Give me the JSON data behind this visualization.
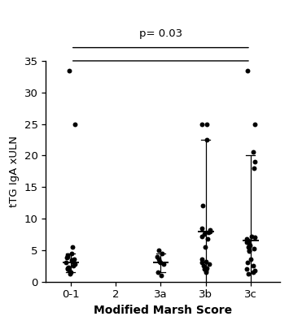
{
  "categories": [
    "0-1",
    "2",
    "3a",
    "3b",
    "3c"
  ],
  "cat_positions": [
    1,
    2,
    3,
    4,
    5
  ],
  "scatter_data": {
    "0-1": [
      33.5,
      25,
      5.5,
      4.5,
      4.2,
      4.0,
      3.8,
      3.5,
      3.4,
      3.2,
      3.0,
      2.8,
      2.5,
      2.3,
      2.2,
      2.0,
      1.8,
      1.5,
      1.2
    ],
    "2": [],
    "3a": [
      5.0,
      4.5,
      4.0,
      3.5,
      3.2,
      3.0,
      2.8,
      1.5,
      1.0
    ],
    "3b": [
      25,
      25,
      22.5,
      12,
      8.5,
      8.2,
      8.0,
      7.8,
      7.5,
      7.2,
      6.8,
      5.5,
      3.5,
      3.2,
      3.0,
      2.8,
      2.5,
      2.2,
      2.0,
      1.8,
      1.5
    ],
    "3c": [
      33.5,
      25,
      20.5,
      19,
      18,
      7.2,
      7.0,
      6.8,
      6.5,
      6.3,
      6.0,
      5.8,
      5.5,
      5.2,
      5.0,
      4.8,
      3.5,
      3.0,
      2.5,
      2.0,
      1.8,
      1.5,
      1.2
    ]
  },
  "mean_values": {
    "0-1": 3.0,
    "3a": 3.0,
    "3b": 8.0,
    "3c": 6.5
  },
  "sd_values": {
    "0-1": 1.5,
    "3a": 1.5,
    "3b": 14.5,
    "3c": 13.5
  },
  "ylabel": "tTG IgA xULN",
  "xlabel": "Modified Marsh Score",
  "ylim": [
    0,
    35
  ],
  "yticks": [
    0,
    5,
    10,
    15,
    20,
    25,
    30,
    35
  ],
  "pvalue_text": "p= 0.03",
  "background_color": "#ffffff",
  "dot_color": "#000000",
  "dot_size": 18,
  "errorbar_color": "#000000"
}
